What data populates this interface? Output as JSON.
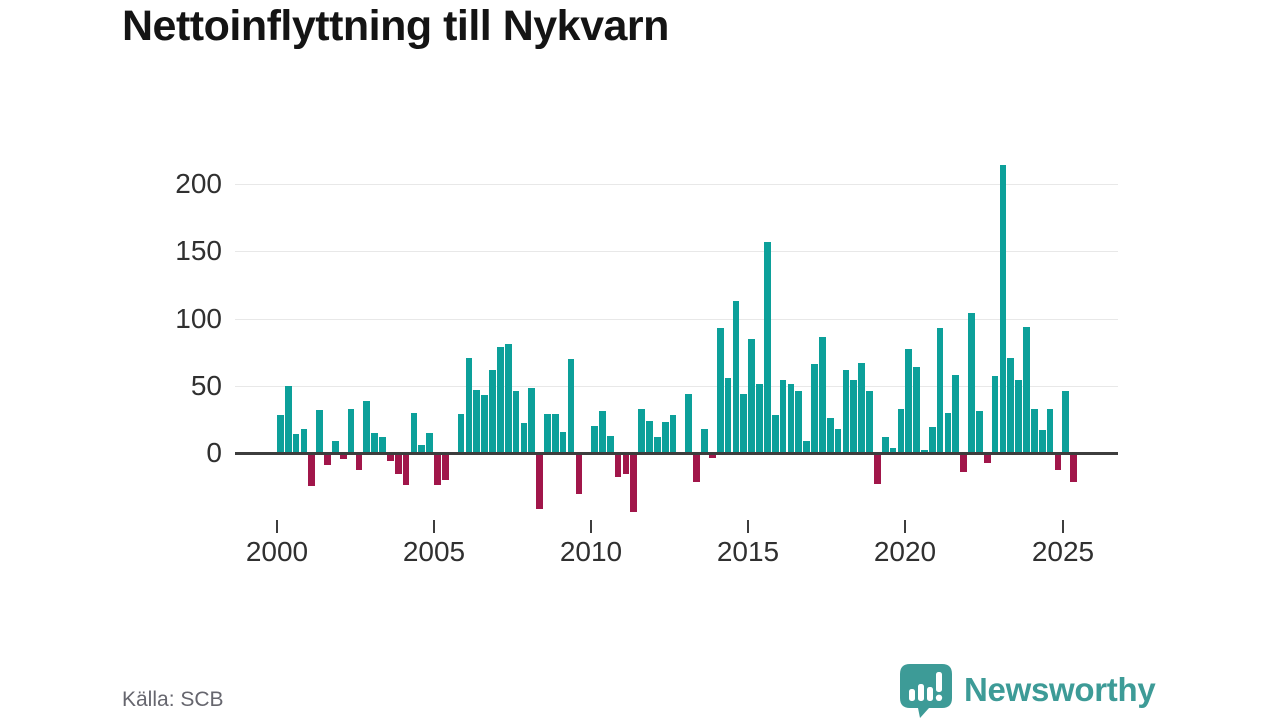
{
  "title": "Nettoinflyttning till Nykvarn",
  "source": {
    "label": "Källa: SCB"
  },
  "branding": {
    "name": "Newsworthy"
  },
  "colors": {
    "positive": "#0ca09a",
    "negative": "#a1164a",
    "grid": "#e8e8e8",
    "axis": "#3d3d3d",
    "tick_text": "#303030",
    "title_text": "#141414",
    "source_text": "#66666e",
    "brand": "#3d9b97"
  },
  "chart_data": {
    "type": "bar",
    "title": "Nettoinflyttning till Nykvarn",
    "frequency": "quarterly",
    "start": "2000-Q1",
    "end": "2025-Q2",
    "grid": true,
    "legend": false,
    "x_axis": {
      "tick_labels": [
        "2000",
        "2005",
        "2010",
        "2015",
        "2020",
        "2025"
      ],
      "tick_years": [
        2000,
        2005,
        2010,
        2015,
        2020,
        2025
      ]
    },
    "y_axis": {
      "tick_labels": [
        "200",
        "150",
        "100",
        "50",
        "0"
      ],
      "tick_values": [
        200,
        150,
        100,
        50,
        0
      ],
      "range": [
        -50,
        220
      ]
    },
    "values": [
      28,
      50,
      14,
      18,
      -24,
      32,
      -8,
      9,
      -4,
      33,
      -12,
      39,
      15,
      12,
      -5,
      -15,
      -23,
      30,
      6,
      15,
      -23,
      -19,
      0,
      29,
      71,
      47,
      43,
      62,
      79,
      81,
      46,
      22,
      48,
      -41,
      29,
      29,
      16,
      70,
      -30,
      0,
      20,
      31,
      13,
      -17,
      -15,
      -43,
      33,
      24,
      12,
      23,
      28,
      0,
      44,
      -21,
      18,
      -3,
      93,
      56,
      113,
      44,
      85,
      51,
      157,
      28,
      54,
      51,
      46,
      9,
      66,
      86,
      26,
      18,
      62,
      54,
      67,
      46,
      -22,
      12,
      4,
      33,
      77,
      64,
      2,
      19,
      93,
      30,
      58,
      -13,
      104,
      31,
      -7,
      57,
      214,
      71,
      54,
      94,
      33,
      17,
      33,
      -12,
      46,
      -21
    ]
  }
}
